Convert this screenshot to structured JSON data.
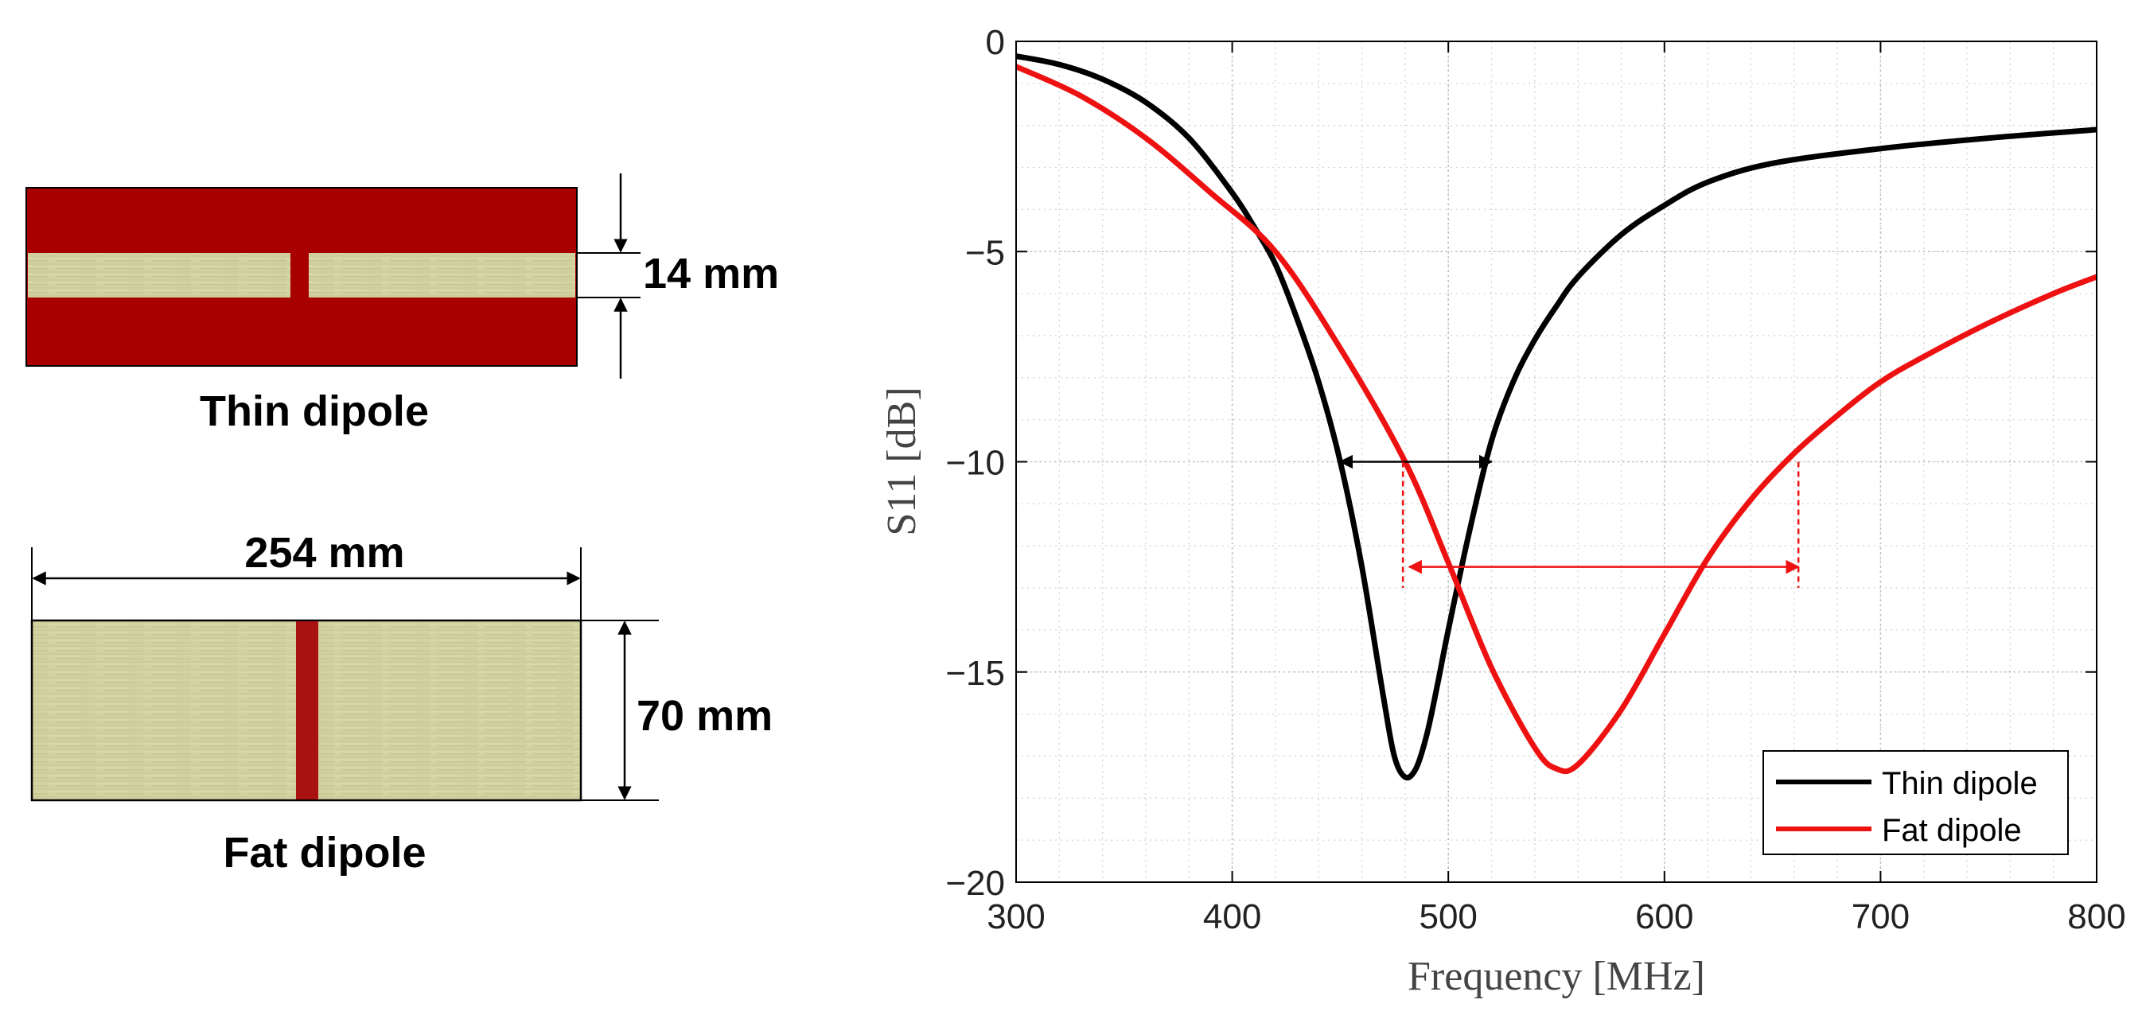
{
  "diagram": {
    "thin": {
      "label": "Thin dipole",
      "gap_label": "14 mm"
    },
    "fat": {
      "label": "Fat dipole",
      "length_label": "254 mm",
      "width_label": "70 mm"
    },
    "colors": {
      "substrate": "#a80000",
      "metal": "#d2d3a0",
      "feed": "#aa1111"
    }
  },
  "chart_data": {
    "type": "line",
    "title": "",
    "xlabel": "Frequency [MHz]",
    "ylabel": "S11 [dB]",
    "xlim": [
      300,
      800
    ],
    "ylim": [
      -20,
      0
    ],
    "xticks": [
      300,
      400,
      500,
      600,
      700,
      800
    ],
    "xtick_labels": [
      "300",
      "400",
      "500",
      "600",
      "700",
      "800"
    ],
    "yticks": [
      0,
      -5,
      -10,
      -15,
      -20
    ],
    "ytick_labels": [
      "0",
      "−5",
      "−10",
      "−15",
      "−20"
    ],
    "grid": "major and minor, dotted",
    "legend_position": "bottom-right",
    "series": [
      {
        "name": "Thin dipole",
        "color": "#000000",
        "x": [
          300,
          320,
          340,
          360,
          380,
          400,
          410,
          420,
          430,
          440,
          450,
          460,
          470,
          475,
          480,
          485,
          490,
          495,
          500,
          510,
          520,
          530,
          540,
          550,
          560,
          580,
          600,
          620,
          650,
          700,
          750,
          800
        ],
        "y": [
          -0.35,
          -0.55,
          -0.9,
          -1.45,
          -2.3,
          -3.6,
          -4.4,
          -5.3,
          -6.6,
          -8.1,
          -10.0,
          -12.5,
          -15.6,
          -17.0,
          -17.5,
          -17.3,
          -16.5,
          -15.3,
          -14.0,
          -11.6,
          -9.5,
          -8.1,
          -7.1,
          -6.3,
          -5.6,
          -4.6,
          -3.9,
          -3.35,
          -2.9,
          -2.55,
          -2.3,
          -2.1
        ]
      },
      {
        "name": "Fat dipole",
        "color": "#ee1111",
        "x": [
          300,
          330,
          360,
          390,
          420,
          450,
          480,
          500,
          520,
          540,
          550,
          560,
          580,
          600,
          620,
          640,
          660,
          680,
          700,
          720,
          750,
          780,
          800
        ],
        "y": [
          -0.6,
          -1.3,
          -2.3,
          -3.6,
          -5.0,
          -7.3,
          -10.0,
          -12.4,
          -14.9,
          -16.8,
          -17.3,
          -17.2,
          -15.9,
          -14.1,
          -12.3,
          -10.9,
          -9.8,
          -8.9,
          -8.1,
          -7.5,
          -6.7,
          -6.0,
          -5.6
        ]
      }
    ],
    "annotations": [
      {
        "series": "Thin dipole",
        "type": "bandwidth-arrow",
        "x_from": 450,
        "x_to": 520,
        "y": -10
      },
      {
        "series": "Fat dipole",
        "type": "bandwidth-arrow",
        "x_from": 479,
        "x_to": 662,
        "y": -12.5,
        "guides_from_y": -10,
        "guides_to_y": -13
      }
    ]
  }
}
